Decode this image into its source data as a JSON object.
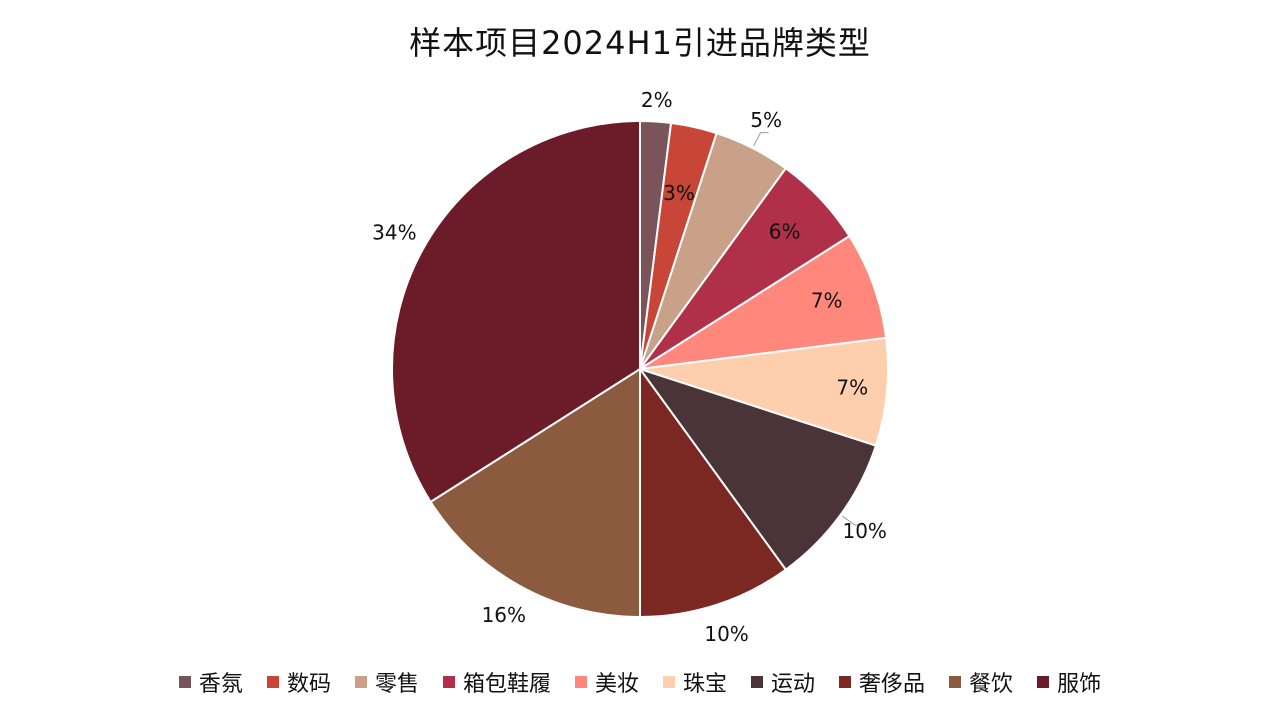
{
  "chart_data": {
    "type": "pie",
    "title": "样本项目2024H1引进品牌类型",
    "categories": [
      "香氛",
      "数码",
      "零售",
      "箱包鞋履",
      "美妆",
      "珠宝",
      "运动",
      "奢侈品",
      "餐饮",
      "服饰"
    ],
    "values": [
      2,
      3,
      5,
      6,
      7,
      7,
      10,
      10,
      16,
      34
    ],
    "labels": [
      "2%",
      "3%",
      "5%",
      "6%",
      "7%",
      "7%",
      "10%",
      "10%",
      "16%",
      "34%"
    ],
    "colors": [
      "#7b545a",
      "#c84637",
      "#c9a088",
      "#b0304a",
      "#ff877b",
      "#ffcfad",
      "#4a3438",
      "#7a2821",
      "#8b5a3f",
      "#6b1c28"
    ],
    "legend_position": "bottom"
  }
}
